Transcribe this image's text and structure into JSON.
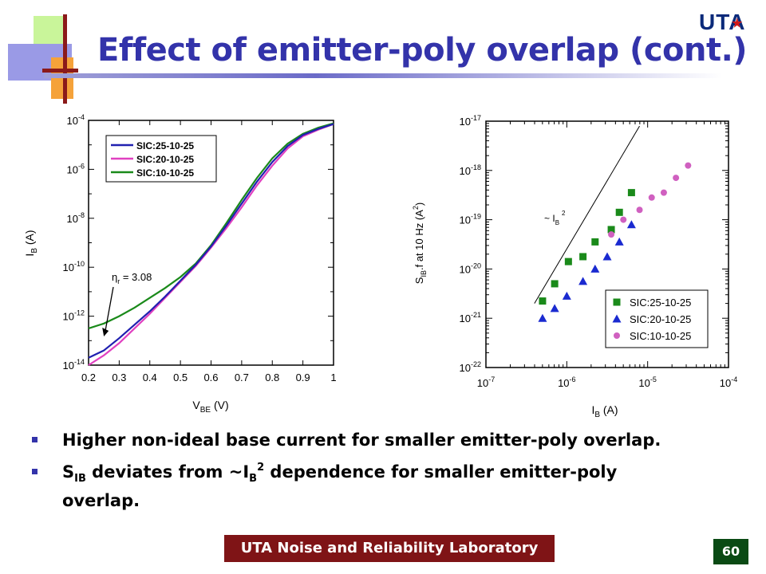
{
  "slide": {
    "title": "Effect of emitter-poly overlap (cont.)",
    "logo": "UTA",
    "footer": "UTA Noise and Reliability Laboratory",
    "page_number": "60"
  },
  "bullets": [
    {
      "text": "Higher non-ideal base current for smaller emitter-poly overlap."
    },
    {
      "p1": "S",
      "s1": "IB",
      "p2": " deviates from ~I",
      "s2": "B",
      "sp": "2",
      "p3": " dependence for smaller emitter-poly",
      "p4": "overlap."
    }
  ],
  "chart_data": [
    {
      "type": "line",
      "xlabel_main": "V",
      "xlabel_sub": "BE",
      "xlabel_unit": " (V)",
      "ylabel_main": "I",
      "ylabel_sub": "B",
      "ylabel_unit": " (A)",
      "xlim": [
        0.2,
        1.0
      ],
      "xticks": [
        "0.2",
        "0.3",
        "0.4",
        "0.5",
        "0.6",
        "0.7",
        "0.8",
        "0.9",
        "1"
      ],
      "ylim_log10": [
        -14,
        -4
      ],
      "yticks": [
        {
          "base": "10",
          "exp": "-4"
        },
        {
          "base": "10",
          "exp": "-6"
        },
        {
          "base": "10",
          "exp": "-8"
        },
        {
          "base": "10",
          "exp": "-10"
        },
        {
          "base": "10",
          "exp": "-12"
        },
        {
          "base": "10",
          "exp": "-14"
        }
      ],
      "series": [
        {
          "name": "SIC:25-10-25",
          "color": "#2020b0",
          "x": [
            0.2,
            0.25,
            0.3,
            0.35,
            0.4,
            0.45,
            0.5,
            0.55,
            0.6,
            0.65,
            0.7,
            0.75,
            0.8,
            0.85,
            0.9,
            0.95,
            1.0
          ],
          "log10y": [
            -13.7,
            -13.4,
            -12.9,
            -12.35,
            -11.8,
            -11.2,
            -10.55,
            -9.9,
            -9.15,
            -8.3,
            -7.4,
            -6.5,
            -5.7,
            -5.05,
            -4.6,
            -4.35,
            -4.15
          ]
        },
        {
          "name": "SIC:20-10-25",
          "color": "#e040c0",
          "x": [
            0.2,
            0.25,
            0.3,
            0.35,
            0.4,
            0.45,
            0.5,
            0.55,
            0.6,
            0.65,
            0.7,
            0.75,
            0.8,
            0.85,
            0.9,
            0.95,
            1.0
          ],
          "log10y": [
            -14.0,
            -13.6,
            -13.1,
            -12.5,
            -11.9,
            -11.25,
            -10.6,
            -9.95,
            -9.2,
            -8.4,
            -7.55,
            -6.65,
            -5.85,
            -5.15,
            -4.65,
            -4.38,
            -4.15
          ]
        },
        {
          "name": "SIC:10-10-25",
          "color": "#1a8a1a",
          "x": [
            0.2,
            0.25,
            0.3,
            0.35,
            0.4,
            0.45,
            0.5,
            0.55,
            0.6,
            0.65,
            0.7,
            0.75,
            0.8,
            0.85,
            0.9,
            0.95,
            1.0
          ],
          "log10y": [
            -12.5,
            -12.3,
            -12.0,
            -11.65,
            -11.25,
            -10.85,
            -10.4,
            -9.85,
            -9.1,
            -8.2,
            -7.25,
            -6.35,
            -5.55,
            -4.95,
            -4.55,
            -4.3,
            -4.12
          ]
        }
      ],
      "annotation": {
        "symbol": "η",
        "sub": "r",
        "text": " = 3.08",
        "target_x": 0.25,
        "target_log10y": -12.5
      },
      "legend": "top-left"
    },
    {
      "type": "scatter",
      "xlabel_main": "I",
      "xlabel_sub": "B",
      "xlabel_unit": " (A)",
      "ylabel_main": "S",
      "ylabel_sub": "IB",
      "ylabel_rest": ".f  at 10 Hz (A",
      "ylabel_sup": "2",
      "ylabel_end": ")",
      "xlim_log10": [
        -7,
        -4
      ],
      "xticks": [
        {
          "base": "10",
          "exp": "-7"
        },
        {
          "base": "10",
          "exp": "-6"
        },
        {
          "base": "10",
          "exp": "-5"
        },
        {
          "base": "10",
          "exp": "-4"
        }
      ],
      "ylim_log10": [
        -22,
        -17
      ],
      "yticks": [
        {
          "base": "10",
          "exp": "-17"
        },
        {
          "base": "10",
          "exp": "-18"
        },
        {
          "base": "10",
          "exp": "-19"
        },
        {
          "base": "10",
          "exp": "-20"
        },
        {
          "base": "10",
          "exp": "-21"
        },
        {
          "base": "10",
          "exp": "-22"
        }
      ],
      "series": [
        {
          "name": "SIC:25-10-25",
          "marker": "square",
          "color": "#1a8a1a",
          "log10x": [
            -6.3,
            -6.15,
            -5.98,
            -5.8,
            -5.65,
            -5.45,
            -5.35,
            -5.2
          ],
          "log10y": [
            -20.65,
            -20.3,
            -19.85,
            -19.75,
            -19.45,
            -19.2,
            -18.85,
            -18.45
          ]
        },
        {
          "name": "SIC:20-10-25",
          "marker": "triangle",
          "color": "#1a2ad0",
          "log10x": [
            -6.3,
            -6.15,
            -6.0,
            -5.8,
            -5.65,
            -5.5,
            -5.35,
            -5.2
          ],
          "log10y": [
            -21.0,
            -20.8,
            -20.55,
            -20.25,
            -20.0,
            -19.75,
            -19.45,
            -19.1
          ]
        },
        {
          "name": "SIC:10-10-25",
          "marker": "circle",
          "color": "#d060c0",
          "log10x": [
            -5.45,
            -5.3,
            -5.1,
            -4.95,
            -4.8,
            -4.65,
            -4.5
          ],
          "log10y": [
            -19.3,
            -19.0,
            -18.8,
            -18.55,
            -18.45,
            -18.15,
            -17.9
          ]
        }
      ],
      "reference_line": {
        "log10x": [
          -6.4,
          -5.1
        ],
        "log10y": [
          -20.7,
          -17.1
        ]
      },
      "annotation": {
        "prefix": "~ I",
        "sub": "B",
        "sup": "2"
      },
      "legend": "bottom-right"
    }
  ]
}
